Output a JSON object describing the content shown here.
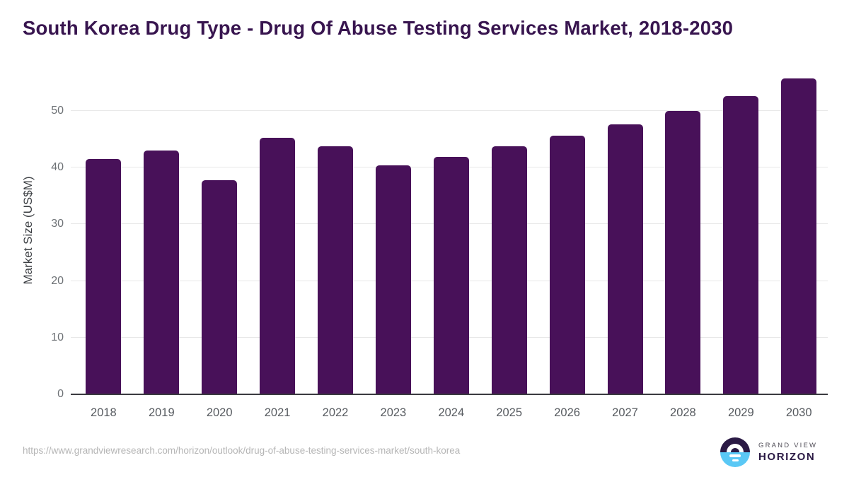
{
  "page": {
    "title": "South Korea Drug Type - Drug Of Abuse Testing Services Market, 2018-2030"
  },
  "chart_data": {
    "type": "bar",
    "title": "South Korea Drug Type - Drug Of Abuse Testing Services Market, 2018-2030",
    "categories": [
      "2018",
      "2019",
      "2020",
      "2021",
      "2022",
      "2023",
      "2024",
      "2025",
      "2026",
      "2027",
      "2028",
      "2029",
      "2030"
    ],
    "values": [
      41.5,
      43,
      37.8,
      45.2,
      43.8,
      40.4,
      41.9,
      43.7,
      45.6,
      47.6,
      50,
      52.6,
      55.7
    ],
    "xlabel": "",
    "ylabel": "Market Size (US$M)",
    "ylim": [
      0,
      57.7
    ],
    "yticks": [
      0,
      10,
      20,
      30,
      40,
      50
    ],
    "grid": true,
    "legend": false,
    "bar_color": "#481159"
  },
  "footer": {
    "source_url": "https://www.grandviewresearch.com/horizon/outlook/drug-of-abuse-testing-services-market/south-korea",
    "logo": {
      "line1": "GRAND VIEW",
      "line2": "HORIZON"
    }
  },
  "colors": {
    "title": "#38154f",
    "bar": "#481159",
    "grid": "#e8e8e8",
    "axis_line": "#3a3a40",
    "tick_label": "#6e7276",
    "category_label": "#565a5f",
    "axis_title": "#3c3f43",
    "url_text": "#b5b5b5",
    "logo_dark_purple": "#2b1a45",
    "logo_light_blue": "#5ac8f5",
    "logo_gray": "#4e4b55"
  }
}
